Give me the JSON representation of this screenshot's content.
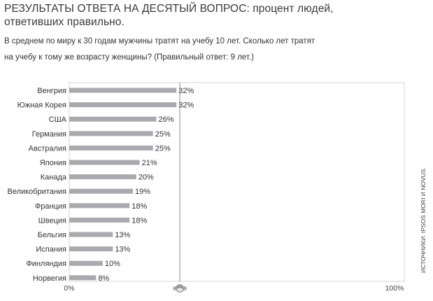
{
  "title": "РЕЗУЛЬТАТЫ ОТВЕТА НА ДЕСЯТЫЙ ВОПРОС: процент людей, ответивших правильно.",
  "subtitle_line1": "В среднем по миру к 30 годам мужчины тратят на учебу 10 лет. Сколько лет тратят",
  "subtitle_line2": "на учебу к тому же возрасту женщины? (Правильный ответ: 9 лет.)",
  "source": "ИСТОЧНИКИ: IPSOS MORI И NOVUS.",
  "colors": {
    "bar": "#a9a9af",
    "frame": "#d6d6d6",
    "marker": "#8c8c8c",
    "text": "#333333"
  },
  "chart_data": {
    "type": "bar",
    "orientation": "horizontal",
    "categories": [
      "Венгрия",
      "Южная Корея",
      "США",
      "Германия",
      "Австралия",
      "Япония",
      "Канада",
      "Великобритания",
      "Франция",
      "Швеция",
      "Бельгия",
      "Испания",
      "Финляндия",
      "Норвегия"
    ],
    "values": [
      32,
      32,
      26,
      25,
      25,
      21,
      20,
      19,
      18,
      18,
      13,
      13,
      10,
      8
    ],
    "value_labels": [
      "32%",
      "32%",
      "26%",
      "25%",
      "25%",
      "21%",
      "20%",
      "19%",
      "18%",
      "18%",
      "13%",
      "13%",
      "10%",
      "8%"
    ],
    "xlim": [
      0,
      100
    ],
    "x_tick_labels": [
      "0%",
      "100%"
    ],
    "reference_line": 33,
    "grid": false
  }
}
